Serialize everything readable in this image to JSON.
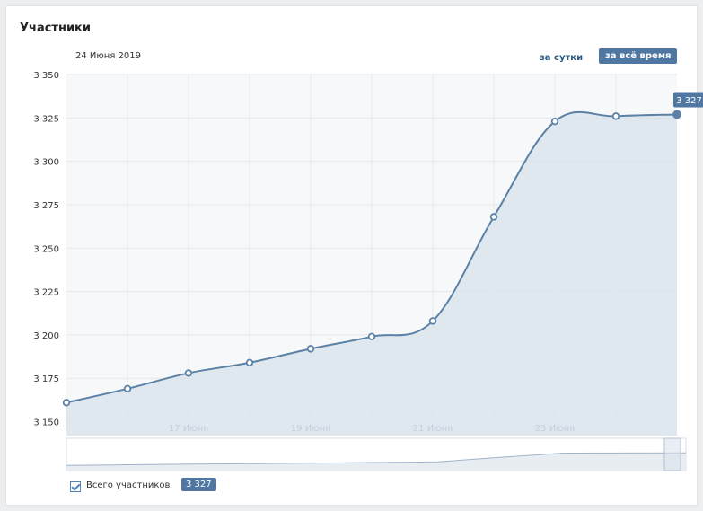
{
  "card": {
    "title": "Участники"
  },
  "toggles": {
    "day": "за сутки",
    "all_time": "за всё время"
  },
  "legend": {
    "label": "Всего участников",
    "value": "3 327"
  },
  "colors": {
    "line": "#5b82a6",
    "fill": "#dbe4ec",
    "grid": "#e4e7eb",
    "axis_text": "#2a5885",
    "accent": "#4f77a2",
    "plot_bg": "#f7f8fa"
  },
  "chart_data": {
    "type": "area",
    "title": "Участники",
    "date_label": "24 Июня 2019",
    "x": [
      15,
      16,
      17,
      18,
      19,
      20,
      21,
      22,
      23,
      24
    ],
    "xticks": [
      {
        "x": 17,
        "label": "17 Июня"
      },
      {
        "x": 19,
        "label": "19 Июня"
      },
      {
        "x": 21,
        "label": "21 Июня"
      },
      {
        "x": 23,
        "label": "23 Июня"
      }
    ],
    "series": [
      {
        "name": "Всего участников",
        "values": [
          3161,
          3169,
          3178,
          3184,
          3192,
          3199,
          3208,
          3268,
          3323,
          3326
        ]
      }
    ],
    "last_point": {
      "x": 25,
      "value": 3327,
      "label": "3 327"
    },
    "yticks": [
      {
        "v": 3150,
        "label": "3 150"
      },
      {
        "v": 3175,
        "label": "3 175"
      },
      {
        "v": 3200,
        "label": "3 200"
      },
      {
        "v": 3225,
        "label": "3 225"
      },
      {
        "v": 3250,
        "label": "3 250"
      },
      {
        "v": 3275,
        "label": "3 275"
      },
      {
        "v": 3300,
        "label": "3 300"
      },
      {
        "v": 3325,
        "label": "3 325"
      },
      {
        "v": 3350,
        "label": "3 350"
      }
    ],
    "ylim": [
      3142,
      3350
    ],
    "xlim": [
      15,
      25
    ]
  }
}
